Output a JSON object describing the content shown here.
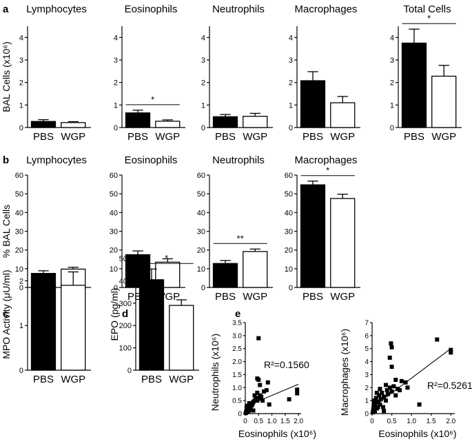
{
  "chart_data": [
    {
      "type": "bar",
      "panel": "a",
      "title": "Lymphocytes",
      "categories": [
        "PBS",
        "WGP"
      ],
      "values": [
        0.27,
        0.22
      ],
      "errors": [
        0.08,
        0.04
      ],
      "ylabel": "BAL Cells (x10⁶)",
      "ylim": [
        0,
        4.5
      ],
      "yticks": [
        "0",
        "1",
        "2",
        "3",
        "4"
      ],
      "significance": ""
    },
    {
      "type": "bar",
      "panel": "",
      "title": "Eosinophils",
      "categories": [
        "PBS",
        "WGP"
      ],
      "values": [
        0.65,
        0.28
      ],
      "errors": [
        0.12,
        0.06
      ],
      "ylabel": "",
      "ylim": [
        0,
        4.5
      ],
      "yticks": [
        "0",
        "1",
        "2",
        "3",
        "4"
      ],
      "significance": "*"
    },
    {
      "type": "bar",
      "panel": "",
      "title": "Neutrophils",
      "categories": [
        "PBS",
        "WGP"
      ],
      "values": [
        0.48,
        0.5
      ],
      "errors": [
        0.1,
        0.13
      ],
      "ylabel": "",
      "ylim": [
        0,
        4.5
      ],
      "yticks": [
        "0",
        "1",
        "2",
        "3",
        "4"
      ],
      "significance": ""
    },
    {
      "type": "bar",
      "panel": "",
      "title": "Macrophages",
      "categories": [
        "PBS",
        "WGP"
      ],
      "values": [
        2.08,
        1.1
      ],
      "errors": [
        0.4,
        0.28
      ],
      "ylabel": "",
      "ylim": [
        0,
        4.5
      ],
      "yticks": [
        "0",
        "1",
        "2",
        "3",
        "4"
      ],
      "significance": ""
    },
    {
      "type": "bar",
      "panel": "",
      "title": "Total Cells",
      "categories": [
        "PBS",
        "WGP"
      ],
      "values": [
        3.75,
        2.28
      ],
      "errors": [
        0.62,
        0.48
      ],
      "ylabel": "",
      "ylim": [
        0,
        4.5
      ],
      "yticks": [
        "0",
        "1",
        "2",
        "3",
        "4"
      ],
      "significance": "*"
    },
    {
      "type": "bar",
      "panel": "b",
      "title": "Lymphocytes",
      "categories": [
        "PBS",
        "WGP"
      ],
      "values": [
        7.5,
        9.8
      ],
      "errors": [
        1.4,
        1.0
      ],
      "ylabel": "% BAL Cells",
      "ylim": [
        0,
        60
      ],
      "yticks": [
        "0",
        "10",
        "20",
        "30",
        "40",
        "50",
        "60"
      ],
      "significance": ""
    },
    {
      "type": "bar",
      "panel": "",
      "title": "Eosinophils",
      "categories": [
        "PBS",
        "WGP"
      ],
      "values": [
        17.5,
        13.5
      ],
      "errors": [
        2.0,
        1.8
      ],
      "ylabel": "",
      "ylim": [
        0,
        60
      ],
      "yticks": [
        "0",
        "10",
        "20",
        "30",
        "40",
        "50",
        "60"
      ],
      "significance": ""
    },
    {
      "type": "bar",
      "panel": "",
      "title": "Neutrophils",
      "categories": [
        "PBS",
        "WGP"
      ],
      "values": [
        12.8,
        19.2
      ],
      "errors": [
        1.6,
        1.3
      ],
      "ylabel": "",
      "ylim": [
        0,
        60
      ],
      "yticks": [
        "0",
        "10",
        "20",
        "30",
        "40",
        "50",
        "60"
      ],
      "significance": "**"
    },
    {
      "type": "bar",
      "panel": "",
      "title": "Macrophages",
      "categories": [
        "PBS",
        "WGP"
      ],
      "values": [
        54.8,
        47.5
      ],
      "errors": [
        2.0,
        2.3
      ],
      "ylabel": "",
      "ylim": [
        0,
        60
      ],
      "yticks": [
        "0",
        "10",
        "20",
        "30",
        "40",
        "50",
        "60"
      ],
      "significance": "*"
    },
    {
      "type": "bar",
      "panel": "c",
      "title": "",
      "categories": [
        "PBS",
        "WGP"
      ],
      "values": [
        1.87,
        1.9
      ],
      "errors": [
        0.25,
        0.3
      ],
      "ylabel": "MPO Activity (μU/ml)",
      "ylim": [
        0,
        2.5
      ],
      "yticks": [
        "0",
        "1",
        "2"
      ],
      "significance": ""
    },
    {
      "type": "bar",
      "panel": "d",
      "title": "",
      "categories": [
        "PBS",
        "WGP"
      ],
      "values": [
        405,
        290
      ],
      "errors": [
        48,
        25
      ],
      "ylabel": "EPO (pg/ml)",
      "ylim": [
        0,
        500
      ],
      "yticks": [
        "0",
        "100",
        "200",
        "300",
        "400",
        "500"
      ],
      "significance": "*"
    },
    {
      "type": "scatter",
      "panel": "e",
      "title": "",
      "xlabel": "Eosinophils (x10⁶)",
      "ylabel": "Neutrophils (x10⁶)",
      "xlim": [
        0,
        2.1
      ],
      "ylim": [
        0,
        3.5
      ],
      "xticks": [
        "0",
        "0.5",
        "1.0",
        "1.5",
        "2.0"
      ],
      "yticks": [
        "0",
        "0.5",
        "1.0",
        "1.5",
        "2.0",
        "2.5",
        "3.0",
        "3.5"
      ],
      "annotation": "R²=0.1560",
      "fit": [
        [
          0,
          0.27
        ],
        [
          2.0,
          1.13
        ]
      ],
      "points": [
        [
          0.02,
          0.02
        ],
        [
          0.03,
          0.05
        ],
        [
          0.04,
          0.08
        ],
        [
          0.05,
          0.1
        ],
        [
          0.06,
          0.12
        ],
        [
          0.07,
          0.15
        ],
        [
          0.08,
          0.18
        ],
        [
          0.1,
          0.2
        ],
        [
          0.12,
          0.22
        ],
        [
          0.05,
          0.25
        ],
        [
          0.09,
          0.3
        ],
        [
          0.15,
          0.28
        ],
        [
          0.18,
          0.25
        ],
        [
          0.2,
          0.3
        ],
        [
          0.22,
          0.35
        ],
        [
          0.25,
          0.32
        ],
        [
          0.28,
          0.4
        ],
        [
          0.3,
          0.45
        ],
        [
          0.35,
          0.5
        ],
        [
          0.4,
          0.55
        ],
        [
          0.45,
          0.5
        ],
        [
          0.5,
          0.6
        ],
        [
          0.55,
          0.7
        ],
        [
          0.6,
          0.65
        ],
        [
          0.12,
          0.08
        ],
        [
          0.3,
          0.12
        ],
        [
          0.5,
          2.9
        ],
        [
          0.45,
          1.35
        ],
        [
          0.5,
          1.3
        ],
        [
          0.85,
          1.2
        ],
        [
          0.55,
          1.1
        ],
        [
          0.45,
          0.8
        ],
        [
          0.65,
          0.5
        ],
        [
          0.8,
          0.9
        ],
        [
          0.9,
          0.35
        ],
        [
          1.65,
          0.55
        ],
        [
          1.95,
          0.92
        ],
        [
          1.95,
          0.78
        ],
        [
          0.15,
          0.4
        ],
        [
          0.35,
          0.7
        ],
        [
          0.7,
          0.85
        ],
        [
          0.2,
          0.15
        ]
      ]
    },
    {
      "type": "scatter",
      "panel": "",
      "title": "",
      "xlabel": "Eosinophils (x10⁶)",
      "ylabel": "Macrophages (x10⁶)",
      "xlim": [
        0,
        2.1
      ],
      "ylim": [
        0,
        7
      ],
      "xticks": [
        "0",
        "0.5",
        "1.0",
        "1.5",
        "2.0"
      ],
      "yticks": [
        "0",
        "1",
        "2",
        "3",
        "4",
        "5",
        "6",
        "7"
      ],
      "annotation": "R²=0.5261",
      "fit": [
        [
          0,
          0.45
        ],
        [
          2.0,
          5.0
        ]
      ],
      "points": [
        [
          0.02,
          0.1
        ],
        [
          0.03,
          0.3
        ],
        [
          0.04,
          0.5
        ],
        [
          0.05,
          0.8
        ],
        [
          0.06,
          1.0
        ],
        [
          0.07,
          0.2
        ],
        [
          0.08,
          0.6
        ],
        [
          0.1,
          1.2
        ],
        [
          0.12,
          0.4
        ],
        [
          0.15,
          0.9
        ],
        [
          0.18,
          1.4
        ],
        [
          0.2,
          0.7
        ],
        [
          0.22,
          1.1
        ],
        [
          0.25,
          1.6
        ],
        [
          0.28,
          0.5
        ],
        [
          0.3,
          1.3
        ],
        [
          0.35,
          1.0
        ],
        [
          0.38,
          1.8
        ],
        [
          0.4,
          1.5
        ],
        [
          0.45,
          2.0
        ],
        [
          0.5,
          1.7
        ],
        [
          0.55,
          2.1
        ],
        [
          0.6,
          1.4
        ],
        [
          0.65,
          1.9
        ],
        [
          0.12,
          1.6
        ],
        [
          0.2,
          1.9
        ],
        [
          0.3,
          0.2
        ],
        [
          0.48,
          5.4
        ],
        [
          0.5,
          5.1
        ],
        [
          0.45,
          4.3
        ],
        [
          0.5,
          3.6
        ],
        [
          0.75,
          2.5
        ],
        [
          0.85,
          2.4
        ],
        [
          0.7,
          1.8
        ],
        [
          1.2,
          0.7
        ],
        [
          1.65,
          5.7
        ],
        [
          2.0,
          4.9
        ],
        [
          2.0,
          4.7
        ],
        [
          0.15,
          0.5
        ],
        [
          0.35,
          2.2
        ],
        [
          0.6,
          2.6
        ],
        [
          0.9,
          2.0
        ]
      ]
    }
  ]
}
